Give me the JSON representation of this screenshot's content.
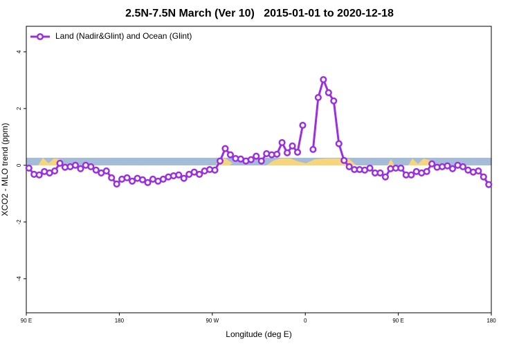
{
  "chart_data": {
    "type": "line",
    "title": "2.5N-7.5N March (Ver 10)   2015-01-01 to 2020-12-18",
    "x_label": "Longitude (deg E)",
    "y_label": "XCO2 - MLO trend (ppm)",
    "x": [
      92.5,
      97.5,
      102.5,
      107.5,
      112.5,
      117.5,
      122.5,
      127.5,
      132.5,
      137.5,
      142.5,
      147.5,
      152.5,
      157.5,
      162.5,
      167.5,
      172.5,
      177.5,
      182.5,
      187.5,
      192.5,
      197.5,
      202.5,
      207.5,
      212.5,
      217.5,
      222.5,
      227.5,
      232.5,
      237.5,
      242.5,
      247.5,
      252.5,
      257.5,
      262.5,
      267.5,
      272.5,
      277.5,
      282.5,
      287.5,
      292.5,
      297.5,
      302.5,
      307.5,
      312.5,
      317.5,
      322.5,
      327.5,
      332.5,
      337.5,
      342.5,
      347.5,
      352.5,
      357.5,
      362.5,
      367.5,
      372.5,
      377.5,
      382.5,
      387.5,
      392.5,
      397.5,
      402.5,
      407.5,
      412.5,
      417.5,
      422.5,
      427.5,
      432.5,
      437.5,
      442.5,
      447.5,
      452.5,
      457.5,
      462.5,
      467.5,
      472.5,
      477.5,
      482.5,
      487.5,
      492.5,
      497.5,
      502.5,
      507.5,
      512.5,
      517.5,
      522.5,
      527.5,
      532.5,
      537.5
    ],
    "series": [
      {
        "name": "Land (Nadir&Glint) and Ocean (Glint)",
        "color": "#9b2fe0",
        "values": [
          -0.1,
          -0.32,
          -0.34,
          -0.22,
          -0.27,
          -0.2,
          0.07,
          -0.07,
          -0.05,
          0,
          -0.12,
          0,
          -0.05,
          -0.17,
          -0.27,
          -0.2,
          -0.44,
          -0.66,
          -0.49,
          -0.44,
          -0.56,
          -0.46,
          -0.51,
          -0.61,
          -0.49,
          -0.56,
          -0.49,
          -0.41,
          -0.37,
          -0.34,
          -0.46,
          -0.32,
          -0.24,
          -0.32,
          -0.2,
          -0.15,
          -0.17,
          0.15,
          0.59,
          0.37,
          0.24,
          0.22,
          0.15,
          0.2,
          0.32,
          0.15,
          0.41,
          0.37,
          0.39,
          0.8,
          0.44,
          0.68,
          0.46,
          1.41,
          null,
          0.56,
          2.39,
          3.02,
          2.56,
          2.27,
          0.76,
          0.17,
          -0.05,
          -0.15,
          -0.15,
          -0.17,
          -0.1,
          -0.27,
          -0.27,
          -0.41,
          -0.12,
          -0.1,
          -0.1,
          -0.34,
          -0.34,
          -0.22,
          -0.27,
          -0.22,
          0.05,
          -0.07,
          -0.05,
          -0.02,
          -0.12,
          0,
          -0.05,
          -0.17,
          -0.24,
          -0.2,
          -0.41,
          -0.68
        ]
      }
    ],
    "xlim": [
      90,
      540
    ],
    "xticks": [
      {
        "value": 90,
        "label": "90 E"
      },
      180,
      {
        "value": 270,
        "label": "90 W"
      },
      {
        "value": 360,
        "label": "0"
      },
      {
        "value": 450,
        "label": "90 E"
      },
      180
    ],
    "ylim": [
      -5.2,
      4.9
    ],
    "yticks": [
      -4,
      -2,
      0,
      2,
      4
    ],
    "legend": "top-left"
  }
}
